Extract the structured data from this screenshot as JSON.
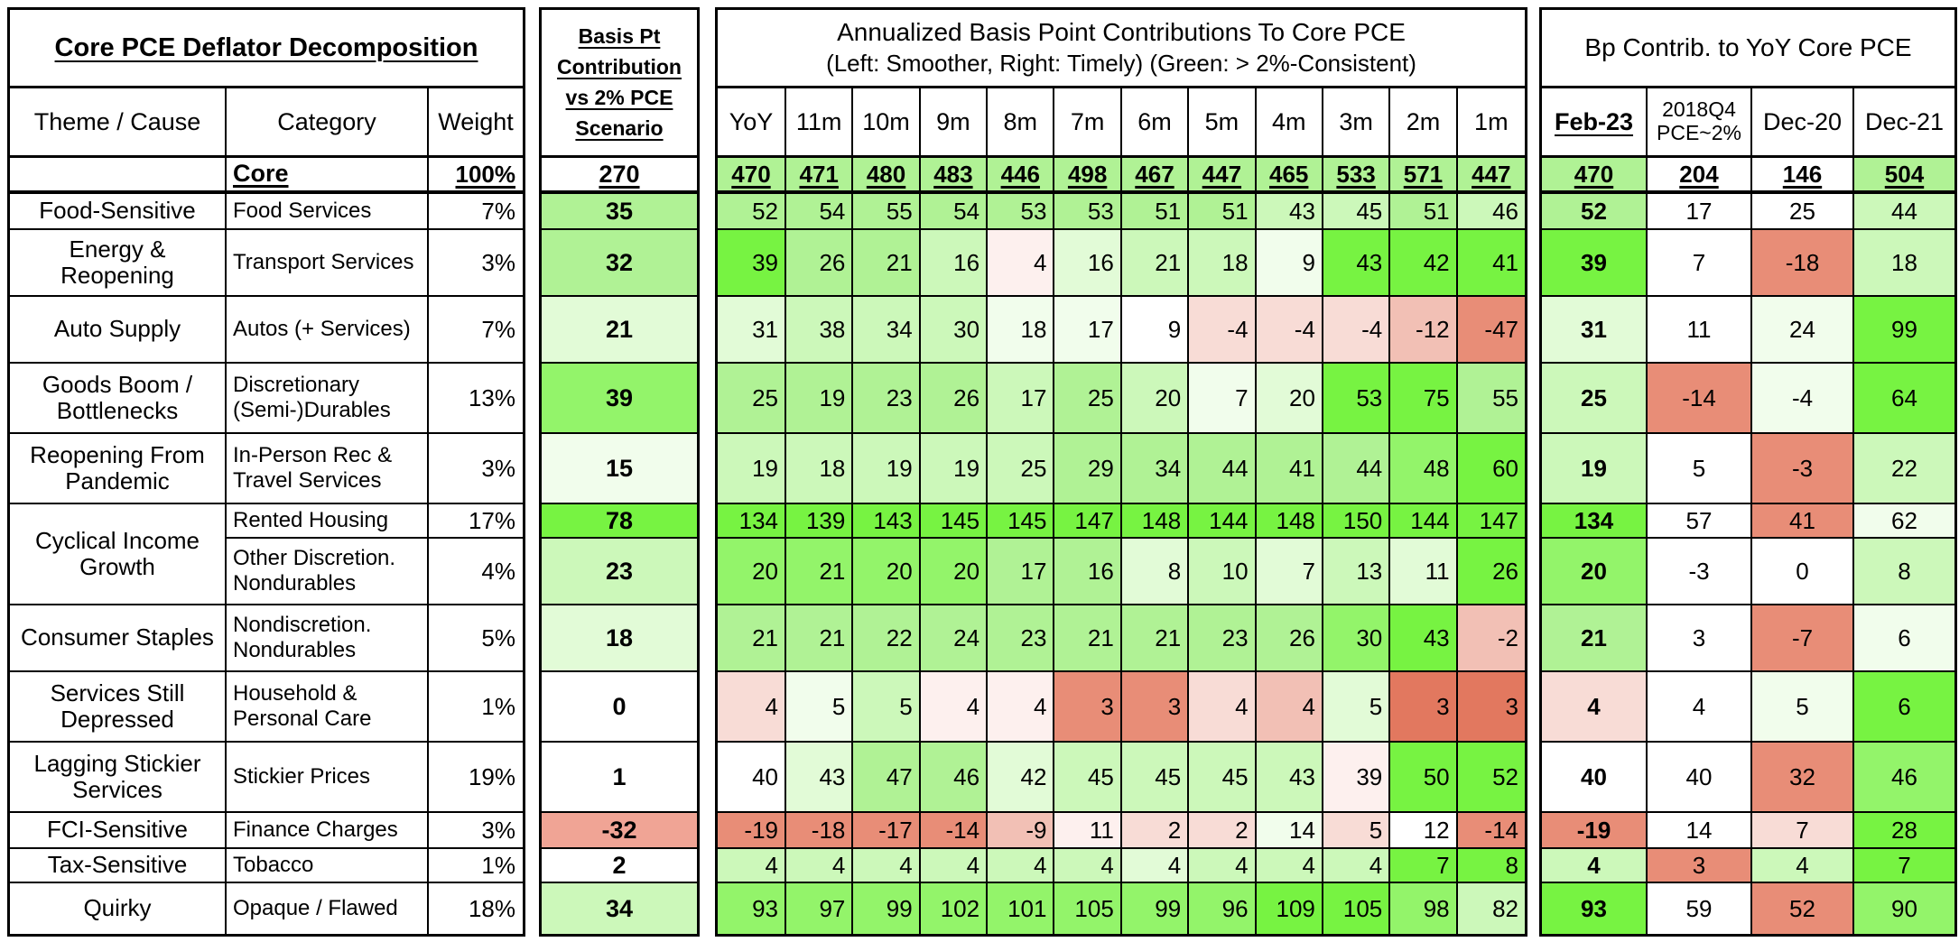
{
  "palette": {
    "g1": "#77f342",
    "g2": "#93f46a",
    "g3": "#b0f295",
    "g4": "#ccf8ba",
    "g5": "#e2fbd7",
    "g6": "#f1fdec",
    "w": "#ffffff",
    "p1": "#fdf0ee",
    "p2": "#f8dcd6",
    "p3": "#f2c0b5",
    "p35": "#f0a495",
    "p4": "#e88d77",
    "p5": "#e2785f"
  },
  "left_table": {
    "title": "Core PCE Deflator Decomposition",
    "headers": {
      "theme": "Theme / Cause",
      "category": "Category",
      "weight": "Weight"
    },
    "rows": [
      {
        "theme": "",
        "category": "Core",
        "weight": "100%",
        "core": true
      },
      {
        "theme": "Food-Sensitive",
        "category": "Food Services",
        "weight": "7%"
      },
      {
        "theme": "Energy & Reopening",
        "category": "Transport Services",
        "weight": "3%"
      },
      {
        "theme": "Auto Supply",
        "category": "Autos (+ Services)",
        "weight": "7%"
      },
      {
        "theme": "Goods Boom / Bottlenecks",
        "category": "Discretionary (Semi-)Durables",
        "weight": "13%"
      },
      {
        "theme": "Reopening From Pandemic",
        "category": "In-Person Rec & Travel Services",
        "weight": "3%"
      },
      {
        "theme": "Cyclical Income Growth",
        "theme_span": 2,
        "category": "Rented Housing",
        "weight": "17%"
      },
      {
        "category": "Other Discretion. Nondurables",
        "weight": "4%"
      },
      {
        "theme": "Consumer Staples",
        "category": "Nondiscretion. Nondurables",
        "weight": "5%"
      },
      {
        "theme": "Services Still Depressed",
        "category": "Household & Personal Care",
        "weight": "1%"
      },
      {
        "theme": "Lagging Stickier Services",
        "category": "Stickier Prices",
        "weight": "19%"
      },
      {
        "theme": "FCI-Sensitive",
        "category": "Finance Charges",
        "weight": "3%"
      },
      {
        "theme": "Tax-Sensitive",
        "category": "Tobacco",
        "weight": "1%"
      },
      {
        "theme": "Quirky",
        "category": "Opaque / Flawed",
        "weight": "18%"
      }
    ]
  },
  "basis_table": {
    "header_lines": [
      "Basis Pt",
      "Contribution",
      "vs 2% PCE",
      "Scenario"
    ],
    "values": [
      270,
      35,
      32,
      21,
      39,
      15,
      78,
      23,
      18,
      0,
      1,
      -32,
      2,
      34
    ],
    "colors": [
      "w",
      "g3",
      "g3",
      "g5",
      "g2",
      "g6",
      "g1",
      "g4",
      "g5",
      "w",
      "w",
      "p35",
      "w",
      "g4"
    ]
  },
  "mid_table": {
    "title_line1": "Annualized Basis Point Contributions To Core PCE",
    "title_line2": "(Left: Smoother, Right: Timely) (Green: > 2%-Consistent)",
    "columns": [
      "YoY",
      "11m",
      "10m",
      "9m",
      "8m",
      "7m",
      "6m",
      "5m",
      "4m",
      "3m",
      "2m",
      "1m"
    ],
    "rows": [
      {
        "values": [
          470,
          471,
          480,
          483,
          446,
          498,
          467,
          447,
          465,
          533,
          571,
          447
        ],
        "colors": [
          "g3",
          "g3",
          "g3",
          "g3",
          "g3",
          "g3",
          "g3",
          "g3",
          "g3",
          "g3",
          "g3",
          "g3"
        ],
        "core": true
      },
      {
        "values": [
          52,
          54,
          55,
          54,
          53,
          53,
          51,
          51,
          43,
          45,
          51,
          46
        ],
        "colors": [
          "g3",
          "g3",
          "g3",
          "g3",
          "g3",
          "g3",
          "g3",
          "g3",
          "g4",
          "g4",
          "g3",
          "g4"
        ]
      },
      {
        "values": [
          39,
          26,
          21,
          16,
          4,
          16,
          21,
          18,
          9,
          43,
          42,
          41
        ],
        "colors": [
          "g1",
          "g3",
          "g3",
          "g4",
          "p1",
          "g5",
          "g4",
          "g4",
          "g6",
          "g1",
          "g1",
          "g1"
        ]
      },
      {
        "values": [
          31,
          38,
          34,
          30,
          18,
          17,
          9,
          -4,
          -4,
          -4,
          -12,
          -47
        ],
        "colors": [
          "g5",
          "g4",
          "g4",
          "g4",
          "g6",
          "g6",
          "w",
          "p2",
          "p2",
          "p2",
          "p3",
          "p4"
        ]
      },
      {
        "values": [
          25,
          19,
          23,
          26,
          17,
          25,
          20,
          7,
          20,
          53,
          75,
          55
        ],
        "colors": [
          "g3",
          "g3",
          "g3",
          "g3",
          "g4",
          "g3",
          "g4",
          "g6",
          "g5",
          "g1",
          "g1",
          "g3"
        ]
      },
      {
        "values": [
          19,
          18,
          19,
          19,
          25,
          29,
          34,
          44,
          41,
          44,
          48,
          60
        ],
        "colors": [
          "g4",
          "g4",
          "g4",
          "g4",
          "g4",
          "g3",
          "g3",
          "g3",
          "g3",
          "g3",
          "g2",
          "g1"
        ]
      },
      {
        "values": [
          134,
          139,
          143,
          145,
          145,
          147,
          148,
          144,
          148,
          150,
          144,
          147
        ],
        "colors": [
          "g1",
          "g1",
          "g1",
          "g1",
          "g1",
          "g1",
          "g1",
          "g1",
          "g1",
          "g1",
          "g1",
          "g1"
        ]
      },
      {
        "values": [
          20,
          21,
          20,
          20,
          17,
          16,
          8,
          10,
          7,
          13,
          11,
          26
        ],
        "colors": [
          "g2",
          "g2",
          "g2",
          "g2",
          "g3",
          "g3",
          "g5",
          "g4",
          "g5",
          "g4",
          "g5",
          "g1"
        ]
      },
      {
        "values": [
          21,
          21,
          22,
          24,
          23,
          21,
          21,
          23,
          26,
          30,
          43,
          -2
        ],
        "colors": [
          "g3",
          "g3",
          "g3",
          "g3",
          "g3",
          "g3",
          "g3",
          "g3",
          "g3",
          "g2",
          "g1",
          "p3"
        ]
      },
      {
        "values": [
          4,
          5,
          5,
          4,
          4,
          3,
          3,
          4,
          4,
          5,
          3,
          3
        ],
        "colors": [
          "p2",
          "g6",
          "g4",
          "p1",
          "p1",
          "p4",
          "p4",
          "p2",
          "p3",
          "g5",
          "p5",
          "p5"
        ]
      },
      {
        "values": [
          40,
          43,
          47,
          46,
          42,
          45,
          45,
          45,
          43,
          39,
          50,
          52
        ],
        "colors": [
          "w",
          "g5",
          "g3",
          "g3",
          "g5",
          "g4",
          "g4",
          "g4",
          "g4",
          "p1",
          "g1",
          "g1"
        ]
      },
      {
        "values": [
          -19,
          -18,
          -17,
          -14,
          -9,
          11,
          2,
          2,
          14,
          5,
          12,
          -14
        ],
        "colors": [
          "p4",
          "p4",
          "p4",
          "p4",
          "p3",
          "p1",
          "p2",
          "p2",
          "g6",
          "p2",
          "w",
          "p4"
        ]
      },
      {
        "values": [
          4,
          4,
          4,
          4,
          4,
          4,
          4,
          4,
          4,
          4,
          7,
          8
        ],
        "colors": [
          "g4",
          "g4",
          "g4",
          "g4",
          "g4",
          "g4",
          "g5",
          "g4",
          "g4",
          "g4",
          "g1",
          "g1"
        ]
      },
      {
        "values": [
          93,
          97,
          99,
          102,
          101,
          105,
          99,
          96,
          109,
          105,
          98,
          82
        ],
        "colors": [
          "g2",
          "g2",
          "g2",
          "g2",
          "g2",
          "g2",
          "g2",
          "g2",
          "g1",
          "g1",
          "g2",
          "g4"
        ]
      }
    ]
  },
  "right_table": {
    "title": "Bp Contrib. to YoY Core PCE",
    "columns": [
      "Feb-23",
      "2018Q4\nPCE~2%",
      "Dec-20",
      "Dec-21"
    ],
    "rows": [
      {
        "values": [
          470,
          204,
          146,
          504
        ],
        "colors": [
          "g3",
          "w",
          "w",
          "g3"
        ],
        "core": true
      },
      {
        "values": [
          52,
          17,
          25,
          44
        ],
        "colors": [
          "g3",
          "w",
          "w",
          "g4"
        ]
      },
      {
        "values": [
          39,
          7,
          -18,
          18
        ],
        "colors": [
          "g1",
          "w",
          "p4",
          "g4"
        ]
      },
      {
        "values": [
          31,
          11,
          24,
          99
        ],
        "colors": [
          "g5",
          "w",
          "g6",
          "g1"
        ]
      },
      {
        "values": [
          25,
          -14,
          -4,
          64
        ],
        "colors": [
          "g4",
          "p4",
          "g6",
          "g1"
        ]
      },
      {
        "values": [
          19,
          5,
          -3,
          22
        ],
        "colors": [
          "g4",
          "w",
          "p4",
          "g4"
        ]
      },
      {
        "values": [
          134,
          57,
          41,
          62
        ],
        "colors": [
          "g1",
          "w",
          "p4",
          "g6"
        ]
      },
      {
        "values": [
          20,
          -3,
          0,
          8
        ],
        "colors": [
          "g2",
          "w",
          "w",
          "g4"
        ]
      },
      {
        "values": [
          21,
          3,
          -7,
          6
        ],
        "colors": [
          "g3",
          "w",
          "p4",
          "g6"
        ]
      },
      {
        "values": [
          4,
          4,
          5,
          6
        ],
        "colors": [
          "p2",
          "w",
          "g6",
          "g1"
        ]
      },
      {
        "values": [
          40,
          40,
          32,
          46
        ],
        "colors": [
          "w",
          "w",
          "p4",
          "g2"
        ]
      },
      {
        "values": [
          -19,
          14,
          7,
          28
        ],
        "colors": [
          "p4",
          "w",
          "p2",
          "g1"
        ]
      },
      {
        "values": [
          4,
          3,
          4,
          7
        ],
        "colors": [
          "g4",
          "p4",
          "g4",
          "g1"
        ]
      },
      {
        "values": [
          93,
          59,
          52,
          90
        ],
        "colors": [
          "g1",
          "w",
          "p4",
          "g2"
        ]
      }
    ]
  },
  "chart_data": {
    "type": "table",
    "title": "Core PCE Deflator Decomposition",
    "notes": [
      "Basis Pt Contribution vs 2% PCE Scenario",
      "Annualized Basis Point Contributions To Core PCE (Left: Smoother, Right: Timely) (Green: > 2%-Consistent)",
      "Bp Contrib. to YoY Core PCE"
    ],
    "row_labels": [
      "Core",
      "Food Services",
      "Transport Services",
      "Autos (+ Services)",
      "Discretionary (Semi-)Durables",
      "In-Person Rec & Travel Services",
      "Rented Housing",
      "Other Discretion. Nondurables",
      "Nondiscretion. Nondurables",
      "Household & Personal Care",
      "Stickier Prices",
      "Finance Charges",
      "Tobacco",
      "Opaque / Flawed"
    ],
    "themes": [
      "",
      "Food-Sensitive",
      "Energy & Reopening",
      "Auto Supply",
      "Goods Boom / Bottlenecks",
      "Reopening From Pandemic",
      "Cyclical Income Growth",
      "Cyclical Income Growth",
      "Consumer Staples",
      "Services Still Depressed",
      "Lagging Stickier Services",
      "FCI-Sensitive",
      "Tax-Sensitive",
      "Quirky"
    ],
    "weights_pct": [
      100,
      7,
      3,
      7,
      13,
      3,
      17,
      4,
      5,
      1,
      19,
      3,
      1,
      18
    ],
    "bp_vs_2pct_scenario": [
      270,
      35,
      32,
      21,
      39,
      15,
      78,
      23,
      18,
      0,
      1,
      -32,
      2,
      34
    ],
    "monthly_columns": [
      "YoY",
      "11m",
      "10m",
      "9m",
      "8m",
      "7m",
      "6m",
      "5m",
      "4m",
      "3m",
      "2m",
      "1m"
    ],
    "monthly_bp_contributions": [
      [
        470,
        471,
        480,
        483,
        446,
        498,
        467,
        447,
        465,
        533,
        571,
        447
      ],
      [
        52,
        54,
        55,
        54,
        53,
        53,
        51,
        51,
        43,
        45,
        51,
        46
      ],
      [
        39,
        26,
        21,
        16,
        4,
        16,
        21,
        18,
        9,
        43,
        42,
        41
      ],
      [
        31,
        38,
        34,
        30,
        18,
        17,
        9,
        -4,
        -4,
        -4,
        -12,
        -47
      ],
      [
        25,
        19,
        23,
        26,
        17,
        25,
        20,
        7,
        20,
        53,
        75,
        55
      ],
      [
        19,
        18,
        19,
        19,
        25,
        29,
        34,
        44,
        41,
        44,
        48,
        60
      ],
      [
        134,
        139,
        143,
        145,
        145,
        147,
        148,
        144,
        148,
        150,
        144,
        147
      ],
      [
        20,
        21,
        20,
        20,
        17,
        16,
        8,
        10,
        7,
        13,
        11,
        26
      ],
      [
        21,
        21,
        22,
        24,
        23,
        21,
        21,
        23,
        26,
        30,
        43,
        -2
      ],
      [
        4,
        5,
        5,
        4,
        4,
        3,
        3,
        4,
        4,
        5,
        3,
        3
      ],
      [
        40,
        43,
        47,
        46,
        42,
        45,
        45,
        45,
        43,
        39,
        50,
        52
      ],
      [
        -19,
        -18,
        -17,
        -14,
        -9,
        11,
        2,
        2,
        14,
        5,
        12,
        -14
      ],
      [
        4,
        4,
        4,
        4,
        4,
        4,
        4,
        4,
        4,
        4,
        7,
        8
      ],
      [
        93,
        97,
        99,
        102,
        101,
        105,
        99,
        96,
        109,
        105,
        98,
        82
      ]
    ],
    "yoy_comparison_columns": [
      "Feb-23",
      "2018Q4 PCE~2%",
      "Dec-20",
      "Dec-21"
    ],
    "yoy_comparison": [
      [
        470,
        204,
        146,
        504
      ],
      [
        52,
        17,
        25,
        44
      ],
      [
        39,
        7,
        -18,
        18
      ],
      [
        31,
        11,
        24,
        99
      ],
      [
        25,
        -14,
        -4,
        64
      ],
      [
        19,
        5,
        -3,
        22
      ],
      [
        134,
        57,
        41,
        62
      ],
      [
        20,
        -3,
        0,
        8
      ],
      [
        21,
        3,
        -7,
        6
      ],
      [
        4,
        4,
        5,
        6
      ],
      [
        40,
        40,
        32,
        46
      ],
      [
        -19,
        14,
        7,
        28
      ],
      [
        4,
        3,
        4,
        7
      ],
      [
        93,
        59,
        52,
        90
      ]
    ]
  }
}
